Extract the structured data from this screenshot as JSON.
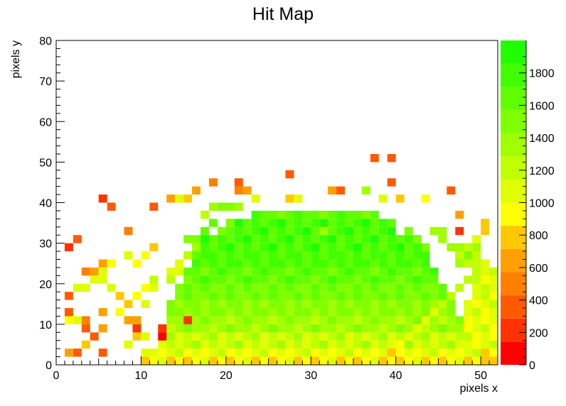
{
  "chart_data": {
    "type": "heatmap",
    "title": "Hit Map",
    "xlabel": "pixels x",
    "ylabel": "pixels y",
    "xlim": [
      0,
      52
    ],
    "ylim": [
      0,
      80
    ],
    "x_ticks": [
      "0",
      "10",
      "20",
      "30",
      "40",
      "50"
    ],
    "y_ticks": [
      "0",
      "10",
      "20",
      "30",
      "40",
      "50",
      "60",
      "70",
      "80"
    ],
    "z_range": [
      0,
      2000
    ],
    "z_ticks": [
      "0",
      "200",
      "400",
      "600",
      "800",
      "1000",
      "1200",
      "1400",
      "1600",
      "1800"
    ],
    "palette": [
      "#ff0000",
      "#ff3300",
      "#ff5a00",
      "#ff8000",
      "#ffa000",
      "#ffc800",
      "#ffff00",
      "#e0ff00",
      "#c0ff00",
      "#a0ff00",
      "#80ff00",
      "#60ff00",
      "#40ff00",
      "#20ff00"
    ],
    "bins_x": 1,
    "bins_y": 2,
    "grid": false,
    "legend": "palette axis right",
    "cells_note": "cells listed as [x_low_edge, y_low_edge, z_value]",
    "cells": [
      [
        1,
        2,
        700
      ],
      [
        2,
        2,
        350
      ],
      [
        3,
        4,
        800
      ],
      [
        4,
        6,
        300
      ],
      [
        5,
        2,
        300
      ],
      [
        3,
        8,
        400
      ],
      [
        5,
        8,
        650
      ],
      [
        1,
        10,
        900
      ],
      [
        2,
        10,
        1100
      ],
      [
        3,
        10,
        500
      ],
      [
        5,
        12,
        700
      ],
      [
        1,
        12,
        400
      ],
      [
        1,
        16,
        350
      ],
      [
        2,
        18,
        1100
      ],
      [
        3,
        18,
        1100
      ],
      [
        4,
        20,
        1100
      ],
      [
        5,
        20,
        1000
      ],
      [
        6,
        18,
        1050
      ],
      [
        7,
        16,
        850
      ],
      [
        8,
        4,
        1000
      ],
      [
        9,
        6,
        850
      ],
      [
        9,
        8,
        150
      ],
      [
        9,
        10,
        700
      ],
      [
        10,
        2,
        1000
      ],
      [
        10,
        6,
        1100
      ],
      [
        8,
        10,
        700
      ],
      [
        7,
        12,
        900
      ],
      [
        8,
        14,
        750
      ],
      [
        9,
        16,
        900
      ],
      [
        10,
        14,
        1050
      ],
      [
        10,
        18,
        950
      ],
      [
        11,
        18,
        1050
      ],
      [
        11,
        20,
        1150
      ],
      [
        12,
        8,
        200
      ],
      [
        12,
        6,
        100
      ],
      [
        4,
        22,
        600
      ],
      [
        5,
        22,
        1050
      ],
      [
        5,
        24,
        650
      ],
      [
        6,
        24,
        950
      ],
      [
        9,
        24,
        950
      ],
      [
        8,
        26,
        1000
      ],
      [
        10,
        26,
        900
      ],
      [
        11,
        28,
        750
      ],
      [
        1,
        28,
        250
      ],
      [
        2,
        30,
        300
      ],
      [
        3,
        22,
        450
      ],
      [
        8,
        32,
        450
      ],
      [
        6,
        38,
        400
      ],
      [
        5,
        40,
        250
      ],
      [
        11,
        38,
        350
      ],
      [
        13,
        40,
        700
      ],
      [
        14,
        40,
        1050
      ],
      [
        15,
        40,
        800
      ],
      [
        16,
        42,
        700
      ],
      [
        18,
        44,
        500
      ],
      [
        17,
        36,
        1200
      ],
      [
        18,
        38,
        1400
      ],
      [
        19,
        38,
        1450
      ],
      [
        20,
        38,
        1500
      ],
      [
        21,
        38,
        1350
      ],
      [
        21,
        42,
        500
      ],
      [
        22,
        42,
        700
      ],
      [
        21,
        44,
        350
      ],
      [
        23,
        40,
        1000
      ],
      [
        27,
        46,
        400
      ],
      [
        28,
        40,
        1000
      ],
      [
        27,
        40,
        800
      ],
      [
        32,
        42,
        600
      ],
      [
        33,
        42,
        400
      ],
      [
        31,
        32,
        1400
      ],
      [
        37,
        50,
        300
      ],
      [
        39,
        50,
        300
      ],
      [
        39,
        44,
        400
      ],
      [
        36,
        42,
        1300
      ],
      [
        38,
        40,
        1100
      ],
      [
        40,
        40,
        750
      ],
      [
        43,
        40,
        900
      ],
      [
        46,
        42,
        400
      ],
      [
        45,
        32,
        1400
      ],
      [
        47,
        36,
        600
      ],
      [
        47,
        32,
        200
      ],
      [
        49,
        30,
        1000
      ],
      [
        50,
        32,
        800
      ],
      [
        50,
        24,
        1050
      ],
      [
        49,
        26,
        1200
      ],
      [
        50,
        34,
        800
      ],
      [
        15,
        10,
        200
      ],
      [
        13,
        22,
        1100
      ],
      [
        13,
        20,
        1150
      ],
      [
        14,
        22,
        1000
      ],
      [
        14,
        24,
        1050
      ],
      [
        15,
        26,
        1200
      ],
      [
        16,
        28,
        1300
      ],
      [
        15,
        30,
        1450
      ],
      [
        16,
        30,
        1550
      ],
      [
        17,
        32,
        1600
      ],
      [
        18,
        34,
        1600
      ],
      [
        19,
        32,
        1500
      ],
      [
        20,
        34,
        1550
      ],
      [
        41,
        32,
        1450
      ],
      [
        42,
        30,
        1500
      ],
      [
        43,
        28,
        1450
      ],
      [
        44,
        32,
        1400
      ],
      [
        45,
        30,
        1350
      ],
      [
        46,
        28,
        1300
      ],
      [
        47,
        26,
        1250
      ],
      [
        48,
        24,
        1200
      ],
      [
        49,
        22,
        1250
      ],
      [
        48,
        20,
        1200
      ],
      [
        47,
        18,
        1250
      ],
      [
        46,
        16,
        1200
      ],
      [
        45,
        14,
        1150
      ],
      [
        44,
        12,
        1100
      ],
      [
        43,
        10,
        1050
      ],
      [
        42,
        8,
        1050
      ],
      [
        41,
        6,
        1000
      ],
      [
        40,
        4,
        950
      ],
      [
        39,
        2,
        850
      ]
    ],
    "fill_regions_note": "filled rectangular regions [x0, x1, y0, y1, z_value] drawn before individual cells",
    "fill_regions": [
      [
        10,
        52,
        0,
        2,
        900
      ],
      [
        11,
        51,
        2,
        4,
        1050
      ],
      [
        12,
        50,
        4,
        8,
        1200
      ],
      [
        13,
        48,
        8,
        12,
        1350
      ],
      [
        13,
        47,
        12,
        16,
        1450
      ],
      [
        14,
        46,
        16,
        20,
        1550
      ],
      [
        15,
        45,
        20,
        24,
        1650
      ],
      [
        16,
        44,
        24,
        28,
        1720
      ],
      [
        17,
        43,
        28,
        32,
        1750
      ],
      [
        20,
        40,
        32,
        36,
        1750
      ],
      [
        23,
        38,
        36,
        38,
        1650
      ],
      [
        48,
        52,
        4,
        16,
        1050
      ],
      [
        50,
        52,
        0,
        4,
        850
      ],
      [
        49,
        52,
        16,
        24,
        1100
      ],
      [
        47,
        50,
        24,
        30,
        1350
      ]
    ]
  }
}
